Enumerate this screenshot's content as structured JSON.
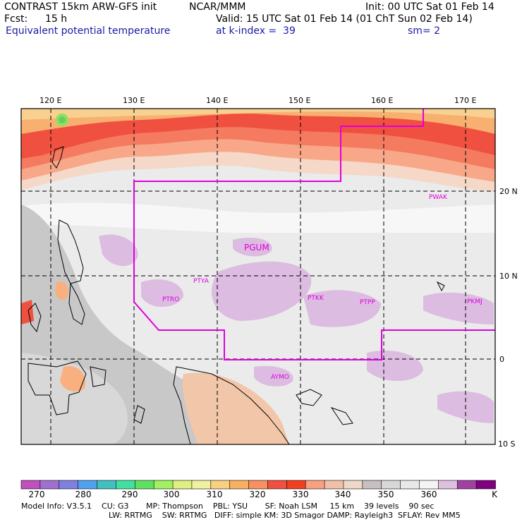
{
  "header": {
    "left_line1": "CONTRAST 15km ARW-GFS init",
    "org": "NCAR/MMM",
    "init": "Init: 00 UTC Sat 01 Feb 14",
    "fcst_label": "Fcst:",
    "fcst_value": "15 h",
    "valid": "Valid: 15 UTC Sat 01 Feb 14 (01 ChT Sun 02 Feb 14)",
    "field": "Equivalent potential temperature",
    "level": "at k-index =  39",
    "smooth": "sm= 2"
  },
  "map": {
    "lon_labels": [
      "120 E",
      "130 E",
      "140 E",
      "150 E",
      "160 E",
      "170 E"
    ],
    "lat_labels": [
      "20 N",
      "10 N",
      "0",
      "10 S"
    ],
    "stations": [
      "PWAK",
      "PGUM",
      "PTYA",
      "PTRO",
      "PTKK",
      "PTPP",
      "PKMJ",
      "AYMO"
    ],
    "region_line_color": "#e000e0"
  },
  "colorbar": {
    "labels": [
      "270",
      "280",
      "290",
      "300",
      "310",
      "320",
      "330",
      "340",
      "350",
      "360"
    ],
    "unit": "K",
    "colors": [
      "#c050c0",
      "#a070d0",
      "#8080e0",
      "#50a0f0",
      "#40c0c0",
      "#40e0a0",
      "#60e060",
      "#a0f060",
      "#e0f080",
      "#f0f0a0",
      "#f8d080",
      "#f8b060",
      "#f89060",
      "#f05040",
      "#f04020",
      "#f8a080",
      "#f0c0a8",
      "#f0d8c8",
      "#c8c0c0",
      "#d8d8d8",
      "#e8e8e8",
      "#f4f4f4",
      "#e0c0e0",
      "#a040a0",
      "#800080"
    ]
  },
  "footer": {
    "line1": "Model Info: V3.5.1    CU: G3       MP: Thompson    PBL: YSU       SF: Noah LSM     15 km    39 levels    90 sec",
    "line2": "LW: RRTMG    SW: RRTMG   DIFF: simple KM: 3D Smagor DAMP: Rayleigh3  SFLAY: Rev MM5"
  }
}
